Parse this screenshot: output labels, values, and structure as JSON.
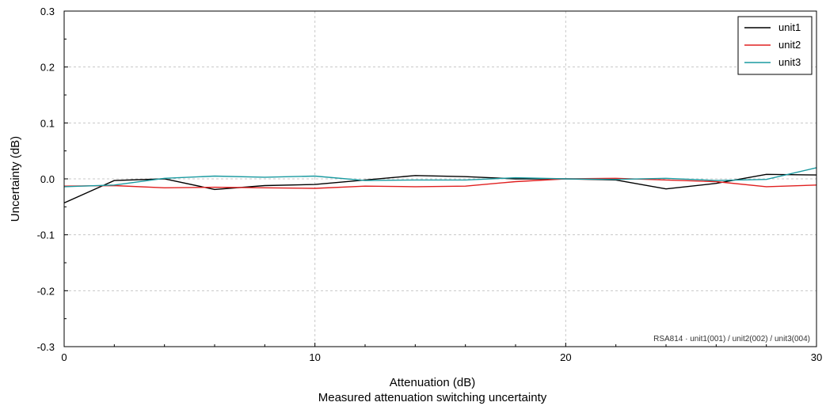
{
  "chart_data": {
    "type": "line",
    "title": "Measured attenuation switching uncertainty",
    "xlabel": "Attenuation (dB)",
    "ylabel": "Uncertainty (dB)",
    "xlim": [
      0,
      30
    ],
    "ylim": [
      -0.3,
      0.3
    ],
    "xticks": [
      0,
      10,
      20,
      30
    ],
    "xtick_labels": [
      "0",
      "10",
      "20",
      "30"
    ],
    "yticks": [
      0.3,
      0.2,
      0.1,
      0.0,
      -0.1,
      -0.2,
      -0.3
    ],
    "ytick_labels": [
      "0.3",
      "0.2",
      "0.1",
      "0.0",
      "-0.1",
      "-0.2",
      "-0.3"
    ],
    "grid": true,
    "legend_position": "top-right",
    "annotation": "RSA814 · unit1(001) / unit2(002) / unit3(004)",
    "x": [
      0,
      2,
      4,
      6,
      8,
      10,
      12,
      14,
      16,
      18,
      20,
      22,
      24,
      26,
      28,
      30
    ],
    "series": [
      {
        "name": "unit1",
        "color": "#000000",
        "values": [
          -0.043,
          -0.003,
          0.0,
          -0.019,
          -0.012,
          -0.01,
          -0.002,
          0.006,
          0.004,
          0.0,
          0.0,
          -0.002,
          -0.018,
          -0.008,
          0.008,
          0.007
        ]
      },
      {
        "name": "unit2",
        "color": "#e02020",
        "values": [
          -0.013,
          -0.012,
          -0.016,
          -0.015,
          -0.016,
          -0.017,
          -0.013,
          -0.014,
          -0.013,
          -0.005,
          0.0,
          0.001,
          -0.002,
          -0.005,
          -0.014,
          -0.011
        ]
      },
      {
        "name": "unit3",
        "color": "#1a9aa0",
        "values": [
          -0.014,
          -0.011,
          0.001,
          0.005,
          0.003,
          0.005,
          -0.003,
          -0.002,
          -0.002,
          0.002,
          0.0,
          -0.001,
          0.001,
          -0.003,
          -0.001,
          0.02
        ]
      }
    ]
  }
}
